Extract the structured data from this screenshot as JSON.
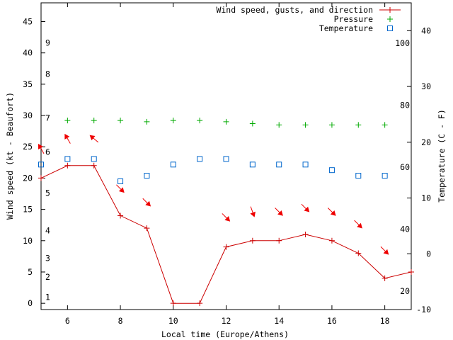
{
  "chart_data": {
    "type": "line",
    "title": "",
    "xlabel": "Local time (Europe/Athens)",
    "ylabel_left": "Wind speed (kt - Beaufort)",
    "ylabel_right": "Temperature (C - F)",
    "xlim": [
      5,
      19
    ],
    "ylim_left": [
      -1,
      48
    ],
    "temp_c_lim": [
      -10,
      45
    ],
    "x_ticks": [
      6,
      8,
      10,
      12,
      14,
      16,
      18
    ],
    "y_ticks_left": [
      0,
      5,
      10,
      15,
      20,
      25,
      30,
      35,
      40,
      45
    ],
    "beaufort_ticks": [
      {
        "label": "1",
        "kt": 1
      },
      {
        "label": "2",
        "kt": 4.2
      },
      {
        "label": "3",
        "kt": 7.2
      },
      {
        "label": "4",
        "kt": 11.6
      },
      {
        "label": "5",
        "kt": 17.6
      },
      {
        "label": "6",
        "kt": 24.2
      },
      {
        "label": "7",
        "kt": 29.6
      },
      {
        "label": "8",
        "kt": 36.6
      },
      {
        "label": "9",
        "kt": 41.6
      }
    ],
    "celsius_ticks": [
      -10,
      0,
      10,
      20,
      30,
      40
    ],
    "fahrenheit_ticks": [
      20,
      40,
      60,
      80,
      100
    ],
    "legend": [
      {
        "label": "Wind speed, gusts, and direction",
        "color": "#cc0000",
        "marker": "plus-line"
      },
      {
        "label": "Pressure",
        "color": "#00aa00",
        "marker": "plus"
      },
      {
        "label": "Temperature",
        "color": "#0066cc",
        "marker": "square"
      }
    ],
    "series": [
      {
        "name": "Wind speed",
        "color": "#cc0000",
        "x": [
          5,
          6,
          7,
          8,
          9,
          10,
          11,
          12,
          13,
          14,
          15,
          16,
          17,
          18,
          19
        ],
        "values": [
          20,
          22,
          22,
          14,
          12,
          0,
          0,
          9,
          10,
          10,
          11,
          10,
          8,
          4,
          5
        ]
      },
      {
        "name": "Wind direction (arrow heading, deg)",
        "color": "#ee0000",
        "x": [
          5,
          6,
          7,
          8,
          9,
          12,
          13,
          14,
          15,
          16,
          17,
          18
        ],
        "kt_position": [
          24.7,
          26.3,
          26.3,
          18.3,
          16.1,
          13.7,
          14.6,
          14.6,
          15.2,
          14.6,
          12.6,
          8.4
        ],
        "heading": [
          240,
          240,
          220,
          45,
          45,
          45,
          70,
          45,
          45,
          45,
          45,
          45
        ]
      },
      {
        "name": "Pressure",
        "color": "#00aa00",
        "x": [
          6,
          7,
          8,
          9,
          10,
          11,
          12,
          13,
          14,
          15,
          16,
          17,
          18
        ],
        "values": [
          29.2,
          29.2,
          29.2,
          29.0,
          29.2,
          29.2,
          29.0,
          28.7,
          28.5,
          28.5,
          28.5,
          28.5,
          28.5
        ]
      },
      {
        "name": "Temperature",
        "color": "#0066cc",
        "x": [
          5,
          6,
          7,
          8,
          9,
          10,
          11,
          12,
          13,
          14,
          15,
          16,
          17,
          18
        ],
        "values": [
          16,
          17,
          17,
          13,
          14,
          16,
          17,
          17,
          16,
          16,
          16,
          15,
          14,
          14
        ]
      }
    ]
  }
}
